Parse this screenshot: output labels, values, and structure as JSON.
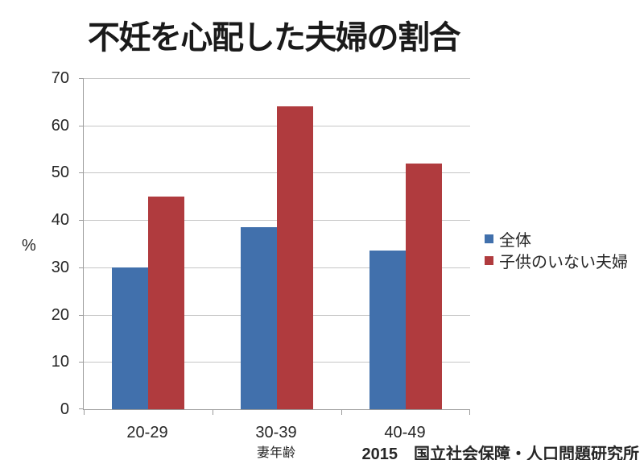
{
  "chart_data": {
    "type": "bar",
    "title": "不妊を心配した夫婦の割合",
    "categories": [
      "20-29",
      "30-39",
      "40-49"
    ],
    "series": [
      {
        "name": "全体",
        "color": "#4170AC",
        "values": [
          30,
          38.5,
          33.5
        ]
      },
      {
        "name": "子供のいない夫婦",
        "color": "#B03B3E",
        "values": [
          45,
          64,
          52
        ]
      }
    ],
    "xlabel": "妻年齢",
    "ylabel": "%",
    "ylim": [
      0,
      70
    ],
    "ytick_step": 10,
    "grid": true,
    "legend_position": "right",
    "source_note": "2015　国立社会保障・人口問題研究所"
  }
}
